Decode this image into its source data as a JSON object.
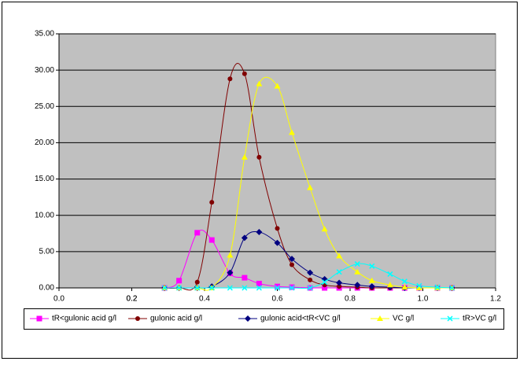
{
  "chart_data": {
    "type": "scatter",
    "smooth": true,
    "grid": true,
    "legend": "bottom",
    "plot_background": "#c0c0c0",
    "x": [
      0.29,
      0.33,
      0.38,
      0.42,
      0.47,
      0.51,
      0.55,
      0.6,
      0.64,
      0.69,
      0.73,
      0.77,
      0.82,
      0.86,
      0.91,
      0.95,
      0.99,
      1.04,
      1.08
    ],
    "series": [
      {
        "name": "tR<gulonic acid g/l",
        "color": "#ff00ff",
        "marker": "square",
        "values": [
          0,
          1.0,
          7.6,
          6.6,
          2.0,
          1.4,
          0.6,
          0.2,
          0.1,
          0,
          0,
          0,
          0,
          0,
          0,
          0,
          0,
          0,
          0
        ]
      },
      {
        "name": "gulonic acid g/l",
        "color": "#800000",
        "marker": "circle",
        "values": [
          0,
          0,
          0.8,
          11.8,
          28.8,
          29.5,
          18.0,
          8.2,
          3.2,
          1.1,
          0.4,
          0.2,
          0.1,
          0,
          0,
          0,
          0,
          0,
          0
        ]
      },
      {
        "name": "gulonic acid<tR<VC g/l",
        "color": "#000080",
        "marker": "diamond",
        "values": [
          0,
          0,
          0,
          0.2,
          2.1,
          6.9,
          7.7,
          6.2,
          4.0,
          2.1,
          1.2,
          0.7,
          0.4,
          0.2,
          0.1,
          0,
          0,
          0,
          0
        ]
      },
      {
        "name": "VC g/l",
        "color": "#ffff00",
        "marker": "triangle",
        "values": [
          0,
          0,
          0,
          0,
          4.5,
          18.0,
          28.1,
          27.8,
          21.4,
          13.8,
          8.1,
          4.4,
          2.2,
          1.0,
          0.4,
          0.1,
          0,
          0,
          0
        ]
      },
      {
        "name": "tR>VC g/l",
        "color": "#00ffff",
        "marker": "cross",
        "values": [
          0,
          0,
          0,
          0,
          0,
          0,
          0,
          0,
          0,
          0,
          0.8,
          2.2,
          3.3,
          3.0,
          1.9,
          0.9,
          0.3,
          0.1,
          0
        ]
      }
    ],
    "xlim": [
      0,
      1.2
    ],
    "xticks": [
      {
        "value": 0,
        "label": "0.0"
      },
      0.2,
      0.4,
      0.6,
      0.8,
      {
        "value": 1,
        "label": "1.0"
      },
      0.2,
      1.2
    ],
    "ylim": [
      0,
      35
    ],
    "yticks": [
      {
        "value": 0,
        "label": "0.00"
      },
      {
        "value": 5,
        "label": "5.00"
      },
      {
        "value": 10,
        "label": "10.00"
      },
      {
        "value": 15,
        "label": "15.00"
      },
      {
        "value": 20,
        "label": "20.00"
      },
      {
        "value": 25,
        "label": "25.00"
      },
      {
        "value": 30,
        "label": "30.00"
      },
      {
        "value": 35,
        "label": "35.00"
      }
    ]
  }
}
